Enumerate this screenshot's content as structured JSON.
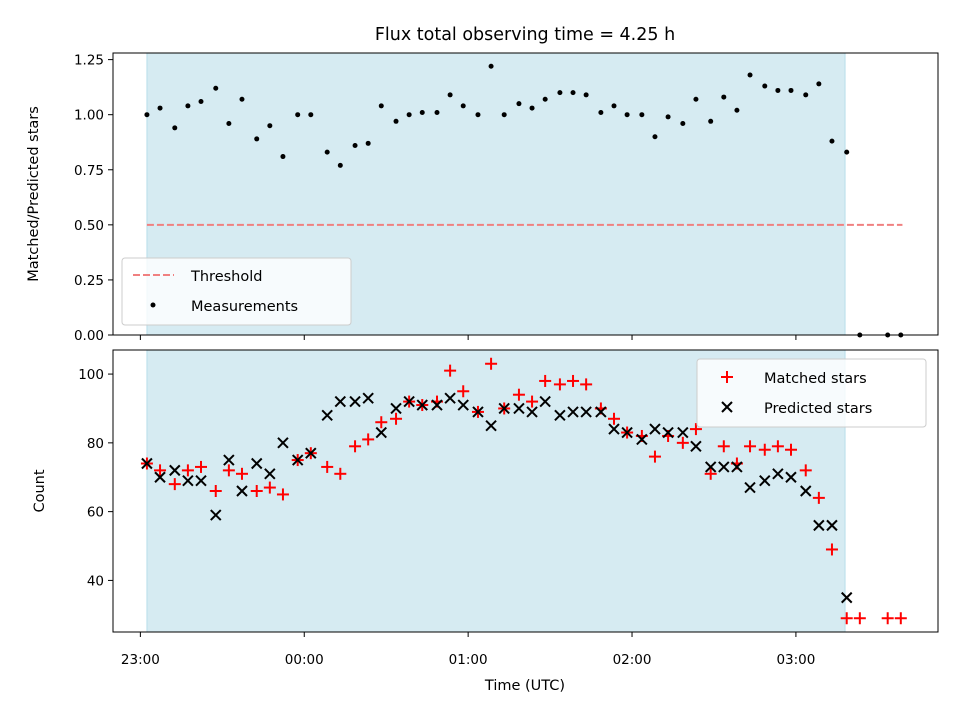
{
  "chart_data": [
    {
      "type": "scatter",
      "title": "Flux total observing time = 4.25 h",
      "xlabel": "",
      "ylabel": "Matched/Predicted stars",
      "ylim": [
        0.0,
        1.28
      ],
      "yticks": [
        "0.00",
        "0.25",
        "0.50",
        "0.75",
        "1.00",
        "1.25"
      ],
      "shaded_x_range": [
        23.04,
        27.3
      ],
      "threshold": {
        "name": "Threshold",
        "y": 0.5,
        "x_range": [
          23.04,
          27.65
        ],
        "color": "#f08080"
      },
      "series": [
        {
          "name": "Measurements",
          "color": "#000000",
          "x": [
            23.04,
            23.12,
            23.21,
            23.29,
            23.37,
            23.46,
            23.54,
            23.62,
            23.71,
            23.79,
            23.87,
            23.96,
            24.04,
            24.14,
            24.22,
            24.31,
            24.39,
            24.47,
            24.56,
            24.64,
            24.72,
            24.81,
            24.89,
            24.97,
            25.06,
            25.14,
            25.22,
            25.31,
            25.39,
            25.47,
            25.56,
            25.64,
            25.72,
            25.81,
            25.89,
            25.97,
            26.06,
            26.14,
            26.22,
            26.31,
            26.39,
            26.48,
            26.56,
            26.64,
            26.72,
            26.81,
            26.89,
            26.97,
            27.06,
            27.14,
            27.22,
            27.31,
            27.39,
            27.56,
            27.64
          ],
          "y": [
            1.0,
            1.03,
            0.94,
            1.04,
            1.06,
            1.12,
            0.96,
            1.07,
            0.89,
            0.95,
            0.81,
            1.0,
            1.0,
            0.83,
            0.77,
            0.86,
            0.87,
            1.04,
            0.97,
            1.0,
            1.01,
            1.01,
            1.09,
            1.04,
            1.0,
            1.22,
            1.0,
            1.05,
            1.03,
            1.07,
            1.1,
            1.1,
            1.09,
            1.01,
            1.04,
            1.0,
            1.0,
            0.9,
            0.99,
            0.96,
            1.07,
            0.97,
            1.08,
            1.02,
            1.18,
            1.13,
            1.11,
            1.11,
            1.09,
            1.14,
            0.88,
            0.83,
            0.0,
            0.0,
            0.0
          ]
        }
      ],
      "legend": {
        "position": "lower-left",
        "entries": [
          "Threshold",
          "Measurements"
        ]
      }
    },
    {
      "type": "scatter",
      "title": "",
      "xlabel": "Time (UTC)",
      "ylabel": "Count",
      "ylim": [
        25,
        107
      ],
      "yticks": [
        "40",
        "60",
        "80",
        "100"
      ],
      "xticks": [
        "23:00",
        "00:00",
        "01:00",
        "02:00",
        "03:00"
      ],
      "shaded_x_range": [
        23.04,
        27.3
      ],
      "series": [
        {
          "name": "Matched stars",
          "marker": "plus",
          "color": "#ff0000",
          "x": [
            23.04,
            23.12,
            23.21,
            23.29,
            23.37,
            23.46,
            23.54,
            23.62,
            23.71,
            23.79,
            23.87,
            23.96,
            24.04,
            24.14,
            24.22,
            24.31,
            24.39,
            24.47,
            24.56,
            24.64,
            24.72,
            24.81,
            24.89,
            24.97,
            25.06,
            25.14,
            25.22,
            25.31,
            25.39,
            25.47,
            25.56,
            25.64,
            25.72,
            25.81,
            25.89,
            25.97,
            26.06,
            26.14,
            26.22,
            26.31,
            26.39,
            26.48,
            26.56,
            26.64,
            26.72,
            26.81,
            26.89,
            26.97,
            27.06,
            27.14,
            27.22,
            27.31,
            27.39,
            27.56,
            27.64
          ],
          "y": [
            74,
            72,
            68,
            72,
            73,
            66,
            72,
            71,
            66,
            67,
            65,
            75,
            77,
            73,
            71,
            79,
            81,
            86,
            87,
            92,
            91,
            92,
            101,
            95,
            89,
            103,
            90,
            94,
            92,
            98,
            97,
            98,
            97,
            90,
            87,
            83,
            82,
            76,
            82,
            80,
            84,
            71,
            79,
            74,
            79,
            78,
            79,
            78,
            72,
            64,
            49,
            29,
            29,
            29,
            29
          ]
        },
        {
          "name": "Predicted stars",
          "marker": "x",
          "color": "#000000",
          "x": [
            23.04,
            23.12,
            23.21,
            23.29,
            23.37,
            23.46,
            23.54,
            23.62,
            23.71,
            23.79,
            23.87,
            23.96,
            24.04,
            24.14,
            24.22,
            24.31,
            24.39,
            24.47,
            24.56,
            24.64,
            24.72,
            24.81,
            24.89,
            24.97,
            25.06,
            25.14,
            25.22,
            25.31,
            25.39,
            25.47,
            25.56,
            25.64,
            25.72,
            25.81,
            25.89,
            25.97,
            26.06,
            26.14,
            26.22,
            26.31,
            26.39,
            26.48,
            26.56,
            26.64,
            26.72,
            26.81,
            26.89,
            26.97,
            27.06,
            27.14,
            27.22,
            27.31
          ],
          "y": [
            74,
            70,
            72,
            69,
            69,
            59,
            75,
            66,
            74,
            71,
            80,
            75,
            77,
            88,
            92,
            92,
            93,
            83,
            90,
            92,
            91,
            91,
            93,
            91,
            89,
            85,
            90,
            90,
            89,
            92,
            88,
            89,
            89,
            89,
            84,
            83,
            81,
            84,
            83,
            83,
            79,
            73,
            73,
            73,
            67,
            69,
            71,
            70,
            66,
            56,
            56,
            35
          ]
        }
      ],
      "legend": {
        "position": "top-right",
        "entries": [
          "Matched stars",
          "Predicted stars"
        ]
      }
    }
  ]
}
